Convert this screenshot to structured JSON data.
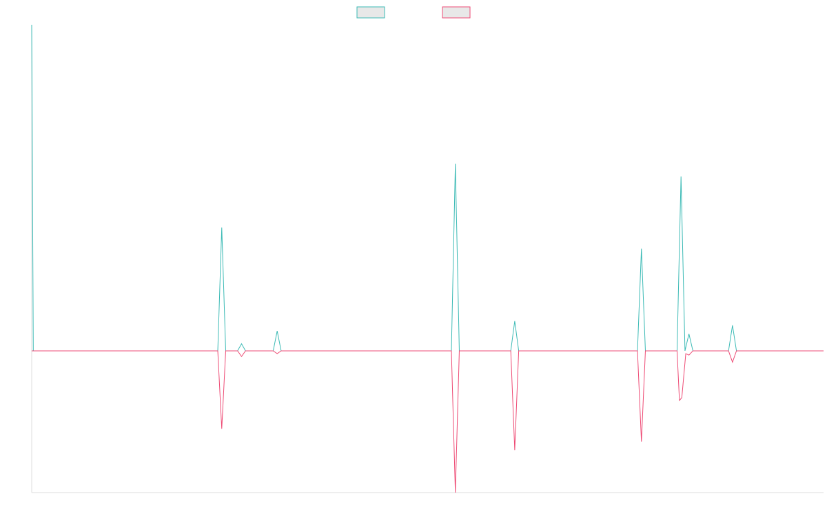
{
  "chart_data": {
    "type": "line",
    "title": "",
    "xlabel": "",
    "ylabel": "",
    "x": [
      0,
      0.5,
      1,
      1.5,
      2,
      2.5,
      3,
      3.5,
      4,
      4.5,
      5,
      5.5,
      6,
      6.5,
      7,
      7.5,
      8,
      8.5,
      9,
      9.5,
      10,
      10.5,
      11,
      11.5,
      12,
      12.5,
      13,
      13.5,
      14,
      14.5,
      15,
      15.5,
      16,
      16.5,
      17,
      17.5,
      18,
      18.5,
      19,
      19.5,
      20,
      20.5,
      21,
      21.5,
      22,
      22.5,
      23,
      23.5,
      24,
      24.5,
      25,
      25.5,
      26,
      26.5,
      27,
      27.5,
      28,
      28.5,
      29,
      29.5,
      30,
      30.5,
      31,
      31.5,
      32,
      32.5,
      33,
      33.5,
      34,
      34.5,
      35,
      35.5,
      36,
      36.5,
      37,
      37.5,
      38,
      38.5,
      39,
      39.5,
      40,
      40.5,
      41,
      41.5,
      42,
      42.5,
      43,
      43.5,
      44,
      44.5,
      45,
      45.5,
      46,
      46.5,
      47,
      47.5,
      48,
      48.5,
      49,
      49.5,
      50,
      50.5,
      51,
      51.5,
      52,
      52.5,
      53,
      53.5,
      54,
      54.5,
      55,
      55.5,
      56,
      56.5,
      57,
      57.5,
      58,
      58.5,
      59,
      59.5,
      60,
      60.5,
      61,
      61.5,
      62,
      62.5,
      63,
      63.5,
      64,
      64.5,
      65,
      65.5,
      66,
      66.5,
      67,
      67.5,
      68,
      68.5,
      69,
      69.5,
      70,
      70.5,
      71,
      71.5,
      72,
      72.5,
      73,
      73.5,
      74,
      74.5,
      75,
      75.5,
      76,
      76.5,
      77,
      77.5,
      78,
      78.5,
      79,
      79.5,
      80,
      80.5,
      81,
      81.5,
      82,
      82.5,
      83,
      83.5,
      84,
      84.5,
      85,
      85.5,
      86,
      86.5,
      87,
      87.5,
      88,
      88.5,
      89,
      89.5,
      90,
      90.5,
      91,
      91.5,
      92,
      92.5,
      93,
      93.5,
      94,
      94.5,
      95,
      95.5,
      96,
      96.5,
      97,
      97.5,
      98,
      98.5,
      99,
      99.5,
      100
    ],
    "ylim": [
      -10,
      23
    ],
    "series": [
      {
        "name": "",
        "color": "#3bbab5",
        "points": [
          [
            0,
            23
          ],
          [
            0.2,
            0
          ],
          [
            11.5,
            0
          ],
          [
            12,
            0
          ],
          [
            23.5,
            0
          ],
          [
            24,
            8.7
          ],
          [
            24.5,
            0
          ],
          [
            26,
            0
          ],
          [
            26.5,
            0.5
          ],
          [
            27,
            0
          ],
          [
            30.5,
            0
          ],
          [
            31,
            1.4
          ],
          [
            31.5,
            0
          ],
          [
            36,
            0
          ],
          [
            53,
            0
          ],
          [
            53.5,
            13.2
          ],
          [
            54,
            0
          ],
          [
            60.5,
            0
          ],
          [
            61,
            2.1
          ],
          [
            61.5,
            0
          ],
          [
            76.5,
            0
          ],
          [
            77,
            7.2
          ],
          [
            77.5,
            0
          ],
          [
            81.5,
            0
          ],
          [
            82,
            12.3
          ],
          [
            82.5,
            0
          ],
          [
            83,
            1.2
          ],
          [
            83.5,
            0
          ],
          [
            88,
            0
          ],
          [
            88.5,
            1.8
          ],
          [
            89,
            0
          ],
          [
            100,
            0
          ]
        ]
      },
      {
        "name": "",
        "color": "#ee4a74",
        "points": [
          [
            0,
            0
          ],
          [
            23.5,
            0
          ],
          [
            24,
            -5.5
          ],
          [
            24.5,
            0
          ],
          [
            26,
            0
          ],
          [
            26.5,
            -0.4
          ],
          [
            27,
            0
          ],
          [
            30.5,
            0
          ],
          [
            31,
            -0.2
          ],
          [
            31.5,
            0
          ],
          [
            53,
            0
          ],
          [
            53.5,
            -10
          ],
          [
            54,
            0
          ],
          [
            60.5,
            0
          ],
          [
            61,
            -7
          ],
          [
            61.5,
            0
          ],
          [
            76.5,
            0
          ],
          [
            77,
            -6.4
          ],
          [
            77.5,
            0
          ],
          [
            81.5,
            0
          ],
          [
            81.8,
            -3.5
          ],
          [
            82.1,
            -3.3
          ],
          [
            82.6,
            -0.2
          ],
          [
            83,
            -0.3
          ],
          [
            83.5,
            0
          ],
          [
            88,
            0
          ],
          [
            88.5,
            -0.8
          ],
          [
            89,
            0
          ],
          [
            100,
            0
          ]
        ]
      }
    ],
    "legend": {
      "placement": "top-center",
      "entries": [
        {
          "name": "",
          "stroke": "#3bbab5",
          "fill": "#e8e8e8"
        },
        {
          "name": "",
          "stroke": "#ee4a74",
          "fill": "#e8e8e8"
        }
      ]
    },
    "axis_color": "#dcdcdc",
    "grid": false
  }
}
